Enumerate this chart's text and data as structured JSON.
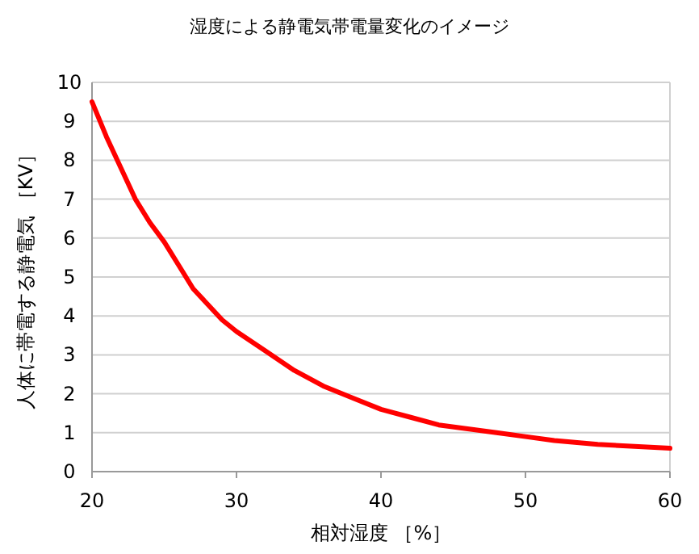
{
  "chart_data": {
    "type": "line",
    "title": "湿度による静電気帯電量変化のイメージ",
    "xlabel": "相対湿度 ［%］",
    "ylabel": "人体に帯電する静電気 ［KV］",
    "x": [
      20,
      21,
      22,
      23,
      24,
      25,
      26,
      27,
      28,
      29,
      30,
      32,
      34,
      36,
      38,
      40,
      42,
      44,
      46,
      48,
      50,
      52,
      55,
      60
    ],
    "series": [
      {
        "color": "#ff0000",
        "values": [
          9.5,
          8.6,
          7.8,
          7.0,
          6.4,
          5.9,
          5.3,
          4.7,
          4.3,
          3.9,
          3.6,
          3.1,
          2.6,
          2.2,
          1.9,
          1.6,
          1.4,
          1.2,
          1.1,
          1.0,
          0.9,
          0.8,
          0.7,
          0.6
        ]
      }
    ],
    "xlim": [
      20,
      60
    ],
    "ylim": [
      0,
      10
    ],
    "xticks": [
      20,
      30,
      40,
      50,
      60
    ],
    "yticks": [
      0,
      1,
      2,
      3,
      4,
      5,
      6,
      7,
      8,
      9,
      10
    ],
    "grid": "y",
    "marker": "none",
    "line_style": "solid"
  }
}
